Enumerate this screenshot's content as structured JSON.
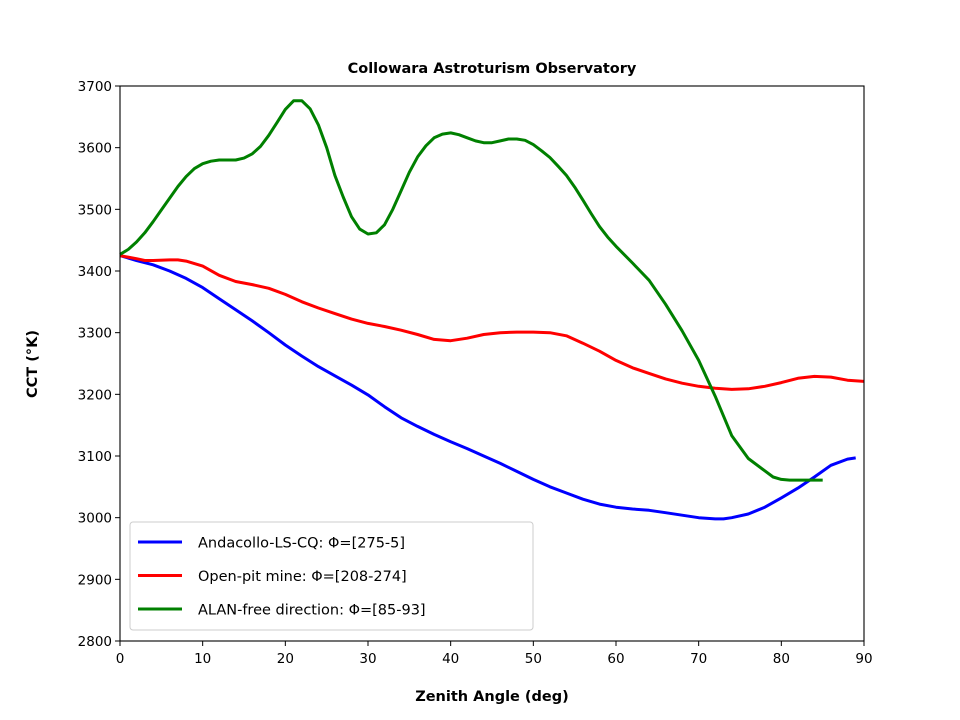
{
  "chart_data": {
    "type": "line",
    "title": "Collowara Astroturism Observatory",
    "xlabel": "Zenith Angle (deg)",
    "ylabel": "CCT (°K)",
    "xlim": [
      0,
      90
    ],
    "ylim": [
      2800,
      3700
    ],
    "xticks": [
      0,
      10,
      20,
      30,
      40,
      50,
      60,
      70,
      80,
      90
    ],
    "yticks": [
      2800,
      2900,
      3000,
      3100,
      3200,
      3300,
      3400,
      3500,
      3600,
      3700
    ],
    "xtick_labels": [
      "0",
      "10",
      "20",
      "30",
      "40",
      "50",
      "60",
      "70",
      "80",
      "90"
    ],
    "ytick_labels": [
      "2800",
      "2900",
      "3000",
      "3100",
      "3200",
      "3300",
      "3400",
      "3500",
      "3600",
      "3700"
    ],
    "grid": false,
    "legend_position": "bottom-left",
    "series": [
      {
        "name": "Andacollo-LS-CQ: Φ=[275-5]",
        "color": "#0000ff",
        "x": [
          0,
          2,
          4,
          6,
          8,
          10,
          12,
          14,
          16,
          18,
          20,
          22,
          24,
          26,
          28,
          30,
          32,
          34,
          36,
          38,
          40,
          42,
          44,
          46,
          48,
          50,
          52,
          54,
          56,
          58,
          60,
          62,
          64,
          66,
          68,
          70,
          72,
          73,
          74,
          76,
          78,
          80,
          82,
          84,
          86,
          88,
          89
        ],
        "y": [
          3425,
          3417,
          3410,
          3400,
          3388,
          3373,
          3355,
          3337,
          3319,
          3300,
          3280,
          3262,
          3245,
          3230,
          3215,
          3199,
          3180,
          3162,
          3148,
          3135,
          3123,
          3112,
          3100,
          3088,
          3075,
          3062,
          3050,
          3040,
          3030,
          3022,
          3017,
          3014,
          3012,
          3008,
          3004,
          3000,
          2998,
          2998,
          3000,
          3006,
          3017,
          3032,
          3048,
          3066,
          3085,
          3095,
          3097
        ]
      },
      {
        "name": "Open-pit mine: Φ=[208-274]",
        "color": "#ff0000",
        "x": [
          0,
          2,
          3,
          4,
          6,
          7,
          8,
          10,
          12,
          14,
          16,
          18,
          20,
          22,
          24,
          26,
          28,
          30,
          32,
          34,
          36,
          38,
          40,
          42,
          44,
          46,
          48,
          50,
          52,
          54,
          56,
          58,
          60,
          62,
          64,
          66,
          68,
          70,
          72,
          74,
          76,
          78,
          80,
          82,
          84,
          86,
          88,
          90
        ],
        "y": [
          3425,
          3420,
          3417,
          3417,
          3418,
          3418,
          3416,
          3408,
          3393,
          3383,
          3378,
          3372,
          3362,
          3350,
          3340,
          3331,
          3322,
          3315,
          3310,
          3304,
          3297,
          3289,
          3287,
          3291,
          3297,
          3300,
          3301,
          3301,
          3300,
          3295,
          3283,
          3270,
          3255,
          3243,
          3234,
          3225,
          3218,
          3213,
          3210,
          3208,
          3209,
          3213,
          3219,
          3226,
          3229,
          3228,
          3223,
          3221
        ]
      },
      {
        "name": "ALAN-free direction: Φ=[85-93]",
        "color": "#008000",
        "x": [
          0,
          1,
          2,
          3,
          4,
          5,
          6,
          7,
          8,
          9,
          10,
          11,
          12,
          13,
          14,
          15,
          16,
          17,
          18,
          19,
          20,
          21,
          22,
          23,
          24,
          25,
          26,
          27,
          28,
          29,
          30,
          31,
          32,
          33,
          34,
          35,
          36,
          37,
          38,
          39,
          40,
          41,
          42,
          43,
          44,
          45,
          46,
          47,
          48,
          49,
          50,
          51,
          52,
          53,
          54,
          55,
          56,
          57,
          58,
          59,
          60,
          62,
          64,
          66,
          68,
          70,
          72,
          74,
          76,
          78,
          79,
          80,
          81,
          82,
          83,
          84,
          85
        ],
        "y": [
          3427,
          3435,
          3447,
          3462,
          3480,
          3499,
          3518,
          3537,
          3553,
          3566,
          3574,
          3578,
          3580,
          3580,
          3580,
          3583,
          3590,
          3602,
          3620,
          3641,
          3662,
          3676,
          3676,
          3663,
          3637,
          3600,
          3555,
          3520,
          3488,
          3468,
          3460,
          3462,
          3475,
          3500,
          3530,
          3560,
          3585,
          3603,
          3616,
          3622,
          3624,
          3621,
          3616,
          3611,
          3608,
          3608,
          3611,
          3614,
          3614,
          3612,
          3605,
          3595,
          3584,
          3570,
          3555,
          3536,
          3515,
          3493,
          3472,
          3455,
          3440,
          3413,
          3385,
          3346,
          3303,
          3255,
          3197,
          3133,
          3096,
          3076,
          3066,
          3062,
          3061,
          3061,
          3061,
          3061,
          3061
        ]
      }
    ]
  }
}
